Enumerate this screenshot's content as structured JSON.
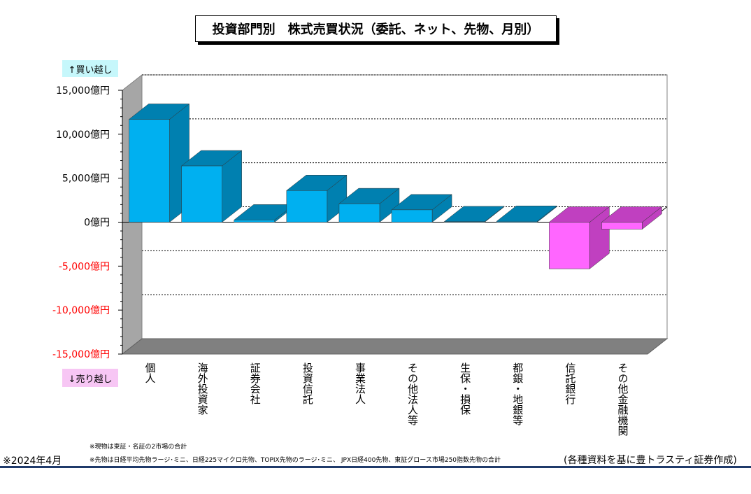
{
  "title": "投資部門別　株式売買状況（委託、ネット、先物、月別）",
  "buy_label": "↑買い越し",
  "sell_label": "↓売り越し",
  "notes": [
    "※現物は東証・名証の2市場の合計",
    "※先物は日経平均先物ラージ･ミニ、日経225マイクロ先物、TOPIX先物のラージ･ミニ、 JPX日経400先物、東証グロース市場250指数先物の合計"
  ],
  "period": "※2024年4月",
  "credit": "(各種資料を基に豊トラスティ証券作成)",
  "colors": {
    "positive": "#00b0f0",
    "positive_side": "#0080b0",
    "negative": "#ff66ff",
    "negative_side": "#c040c0",
    "negative_tick": "#ff0000"
  },
  "chart_data": {
    "type": "bar",
    "categories": [
      "個人",
      "海外投資家",
      "証券会社",
      "投資信託",
      "事業法人",
      "その他法人等",
      "生保・損保",
      "都銀・地銀等",
      "信託銀行",
      "その他金融機関"
    ],
    "values": [
      11700,
      6400,
      250,
      3600,
      2100,
      1400,
      50,
      100,
      -5300,
      -800
    ],
    "ylim": [
      -15000,
      15000
    ],
    "yticks": [
      15000,
      10000,
      5000,
      0,
      -5000,
      -10000,
      -15000
    ],
    "ytick_labels": [
      "15,000億円",
      "10,000億円",
      "5,000億円",
      "0億円",
      "-5,000億円",
      "-10,000億円",
      "-15,000億円"
    ],
    "grid": true
  }
}
